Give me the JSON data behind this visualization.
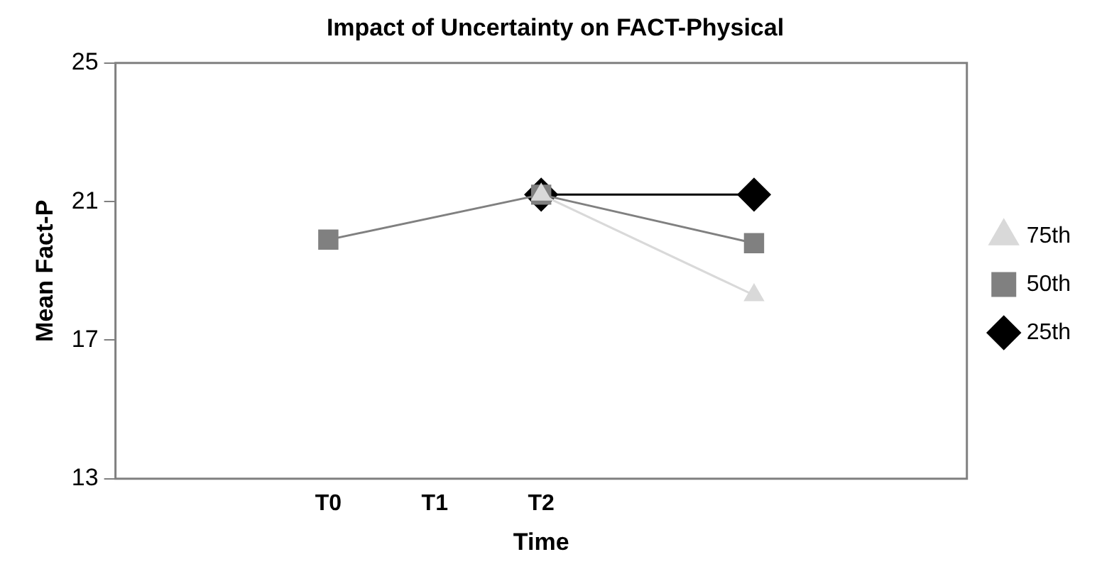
{
  "chart_data": {
    "type": "line",
    "title": "Impact of Uncertainty on FACT-Physical",
    "xlabel": "Time",
    "ylabel": "Mean Fact-P",
    "categories": [
      null,
      null,
      "T0",
      "T1",
      "T2",
      null,
      null,
      null,
      null
    ],
    "series": [
      {
        "name": "25th",
        "color": "#000000",
        "marker": "diamond",
        "values": [
          null,
          null,
          null,
          null,
          21.2,
          null,
          21.2,
          null,
          null
        ]
      },
      {
        "name": "50th",
        "color": "#808080",
        "marker": "square",
        "values": [
          null,
          null,
          19.9,
          null,
          21.2,
          null,
          19.8,
          null,
          null
        ]
      },
      {
        "name": "75th",
        "color": "#d9d9d9",
        "marker": "triangle",
        "values": [
          null,
          null,
          null,
          null,
          21.2,
          null,
          18.3,
          null,
          null
        ]
      }
    ],
    "ylim": [
      13,
      25
    ],
    "yticks": [
      13,
      17,
      21,
      25
    ],
    "grid": false,
    "legend": "right"
  }
}
